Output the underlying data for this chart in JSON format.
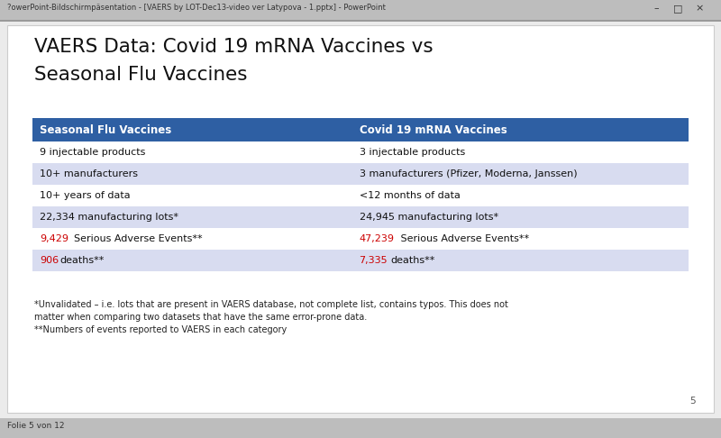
{
  "title_line1": "VAERS Data: Covid 19 mRNA Vaccines vs",
  "title_line2": "Seasonal Flu Vaccines",
  "header_bg_color": "#2E5FA3",
  "header_text_color": "#FFFFFF",
  "col1_header": "Seasonal Flu Vaccines",
  "col2_header": "Covid 19 mRNA Vaccines",
  "rows": [
    [
      "9 injectable products",
      "3 injectable products"
    ],
    [
      "10+ manufacturers",
      "3 manufacturers (Pfizer, Moderna, Janssen)"
    ],
    [
      "10+ years of data",
      "<12 months of data"
    ],
    [
      "22,334 manufacturing lots*",
      "24,945 manufacturing lots*"
    ],
    [
      "9,429 Serious Adverse Events**",
      "47,239  Serious Adverse Events**"
    ],
    [
      "906 deaths**",
      "7,335 deaths**"
    ]
  ],
  "row_bg_colors": [
    "#FFFFFF",
    "#D8DCF0",
    "#FFFFFF",
    "#D8DCF0",
    "#FFFFFF",
    "#D8DCF0"
  ],
  "footnote1": "*Unvalidated – i.e. lots that are present in VAERS database, not complete list, contains typos. This does not",
  "footnote2": "matter when comparing two datasets that have the same error-prone data.",
  "footnote3": "**Numbers of events reported to VAERS in each category",
  "window_bg": "#EBEBEB",
  "slide_bg": "#FFFFFF",
  "title_bar_text": "?owerPoint-Bildschirmpäsentation - [VAERS by LOT-Dec13-video ver Latypova - 1.pptx] - PowerPoint",
  "status_bar_text": "Folie 5 von 12",
  "slide_number": "5",
  "red_color": "#CC0000",
  "black_color": "#111111",
  "white_color": "#FFFFFF"
}
